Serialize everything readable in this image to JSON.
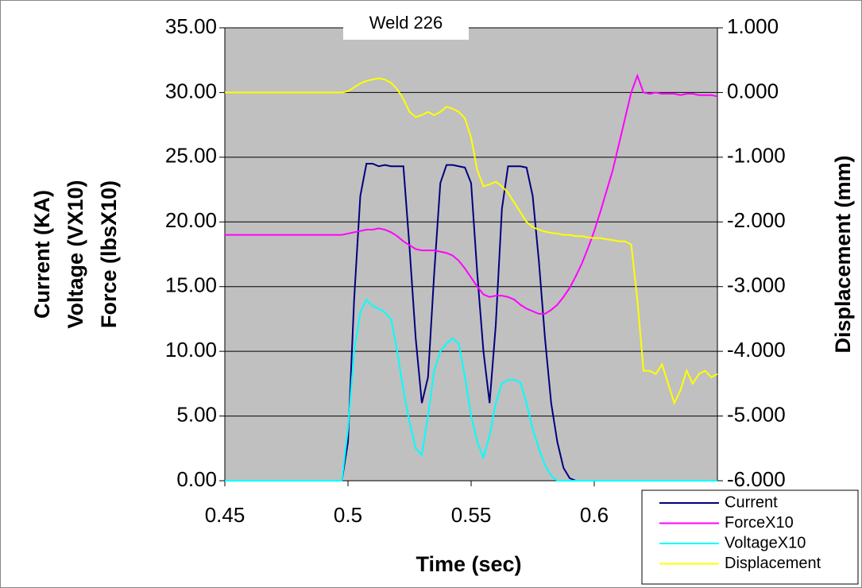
{
  "chart_data": {
    "type": "line",
    "title": "Weld 226",
    "x_label": "Time (sec)",
    "y_label": [
      "Current (KA)",
      "Voltage (VX10)",
      "Force (lbsX10)"
    ],
    "y2_label": "Displacement (mm)",
    "xlim": [
      0.45,
      0.65
    ],
    "xticks": [
      0.45,
      0.5,
      0.55,
      0.6
    ],
    "ylim": [
      0,
      35
    ],
    "yticks": [
      {
        "value": 0,
        "label": "0.00"
      },
      {
        "value": 5,
        "label": "5.00"
      },
      {
        "value": 10,
        "label": "10.00"
      },
      {
        "value": 15,
        "label": "15.00"
      },
      {
        "value": 20,
        "label": "20.00"
      },
      {
        "value": 25,
        "label": "25.00"
      },
      {
        "value": 30,
        "label": "30.00"
      },
      {
        "value": 35,
        "label": "35.00"
      }
    ],
    "y2lim": [
      -6,
      1
    ],
    "y2ticks": [
      {
        "value": -6,
        "label": "-6.000"
      },
      {
        "value": -5,
        "label": "-5.000"
      },
      {
        "value": -4,
        "label": "-4.000"
      },
      {
        "value": -3,
        "label": "-3.000"
      },
      {
        "value": -2,
        "label": "-2.000"
      },
      {
        "value": -1,
        "label": "-1.000"
      },
      {
        "value": 0,
        "label": "0.000"
      },
      {
        "value": 1,
        "label": "1.000"
      }
    ],
    "grid": true,
    "legend": "bottom-right",
    "x": [
      0.45,
      0.4525,
      0.455,
      0.4575,
      0.46,
      0.4625,
      0.465,
      0.4675,
      0.47,
      0.4725,
      0.475,
      0.4775,
      0.48,
      0.4825,
      0.485,
      0.4875,
      0.49,
      0.4925,
      0.495,
      0.4975,
      0.5,
      0.5025,
      0.505,
      0.5075,
      0.51,
      0.5125,
      0.515,
      0.5175,
      0.52,
      0.5225,
      0.525,
      0.5275,
      0.53,
      0.5325,
      0.535,
      0.5375,
      0.54,
      0.5425,
      0.545,
      0.5475,
      0.55,
      0.5525,
      0.555,
      0.5575,
      0.56,
      0.5625,
      0.565,
      0.5675,
      0.57,
      0.5725,
      0.575,
      0.5775,
      0.58,
      0.5825,
      0.585,
      0.5875,
      0.59,
      0.5925,
      0.595,
      0.5975,
      0.6,
      0.6025,
      0.605,
      0.6075,
      0.61,
      0.6125,
      0.615,
      0.6175,
      0.62,
      0.6225,
      0.625,
      0.6275,
      0.63,
      0.6325,
      0.635,
      0.6375,
      0.64,
      0.6425,
      0.645,
      0.6475,
      0.65
    ],
    "series": [
      {
        "name": "Current",
        "color": "#000080",
        "values": [
          0,
          0,
          0,
          0,
          0,
          0,
          0,
          0,
          0,
          0,
          0,
          0,
          0,
          0,
          0,
          0,
          0,
          0,
          0,
          0,
          3,
          14,
          22,
          24.5,
          24.5,
          24.3,
          24.4,
          24.3,
          24.3,
          24.3,
          18,
          11,
          6,
          8,
          16,
          23,
          24.4,
          24.4,
          24.3,
          24.2,
          23,
          16,
          10,
          6,
          12,
          21,
          24.3,
          24.3,
          24.3,
          24.2,
          22,
          17,
          11,
          6,
          3,
          1,
          0.2,
          0,
          0,
          0,
          0,
          0,
          0,
          0,
          0,
          0,
          0,
          0,
          0,
          0,
          0,
          0,
          0,
          0,
          0,
          0,
          0,
          0,
          0,
          0,
          0
        ]
      },
      {
        "name": "ForceX10",
        "color": "#ff00ff",
        "values": [
          19,
          19,
          19,
          19,
          19,
          19,
          19,
          19,
          19,
          19,
          19,
          19,
          19,
          19,
          19,
          19,
          19,
          19,
          19,
          19,
          19.1,
          19.2,
          19.3,
          19.4,
          19.4,
          19.5,
          19.4,
          19.2,
          18.9,
          18.5,
          18.2,
          17.9,
          17.8,
          17.8,
          17.8,
          17.7,
          17.6,
          17.4,
          17,
          16.4,
          15.7,
          15,
          14.4,
          14.2,
          14.3,
          14.3,
          14.2,
          14,
          13.6,
          13.3,
          13.1,
          12.9,
          12.9,
          13.2,
          13.6,
          14.2,
          14.9,
          15.8,
          16.8,
          18,
          19.3,
          20.8,
          22.4,
          24,
          26,
          28,
          30,
          31.3,
          30,
          29.9,
          30,
          29.9,
          29.9,
          29.9,
          29.8,
          29.9,
          29.9,
          29.8,
          29.8,
          29.8,
          29.7
        ]
      },
      {
        "name": "VoltageX10",
        "color": "#00ffff",
        "values": [
          0,
          0,
          0,
          0,
          0,
          0,
          0,
          0,
          0,
          0,
          0,
          0,
          0,
          0,
          0,
          0,
          0,
          0,
          0,
          0,
          4,
          10,
          13,
          14,
          13.5,
          13.3,
          13,
          12.5,
          10,
          7,
          4.5,
          2.5,
          2,
          5,
          8.5,
          10,
          10.6,
          11,
          10.6,
          8,
          5,
          3,
          1.8,
          3.5,
          6,
          7.5,
          7.8,
          7.8,
          7.6,
          6,
          4,
          2.5,
          1.2,
          0.4,
          0,
          0,
          0,
          0,
          0,
          0,
          0,
          0,
          0,
          0,
          0,
          0,
          0,
          0,
          0,
          0,
          0,
          0,
          0,
          0,
          0,
          0,
          0,
          0,
          0,
          0,
          0
        ]
      },
      {
        "name": "Displacement",
        "color": "#ffff00",
        "axis": "y2",
        "values": [
          0,
          0,
          0,
          0,
          0,
          0,
          0,
          0,
          0,
          0,
          0,
          0,
          0,
          0,
          0,
          0,
          0,
          0,
          0,
          0,
          0.02,
          0.08,
          0.14,
          0.18,
          0.2,
          0.22,
          0.2,
          0.15,
          0.05,
          -0.1,
          -0.3,
          -0.38,
          -0.35,
          -0.3,
          -0.35,
          -0.3,
          -0.22,
          -0.25,
          -0.3,
          -0.4,
          -0.7,
          -1.2,
          -1.45,
          -1.42,
          -1.38,
          -1.45,
          -1.55,
          -1.7,
          -1.85,
          -2,
          -2.08,
          -2.12,
          -2.15,
          -2.17,
          -2.18,
          -2.2,
          -2.2,
          -2.22,
          -2.22,
          -2.24,
          -2.25,
          -2.25,
          -2.27,
          -2.28,
          -2.3,
          -2.3,
          -2.35,
          -3.2,
          -4.3,
          -4.3,
          -4.35,
          -4.2,
          -4.5,
          -4.8,
          -4.6,
          -4.3,
          -4.5,
          -4.35,
          -4.3,
          -4.4,
          -4.35
        ]
      }
    ]
  }
}
